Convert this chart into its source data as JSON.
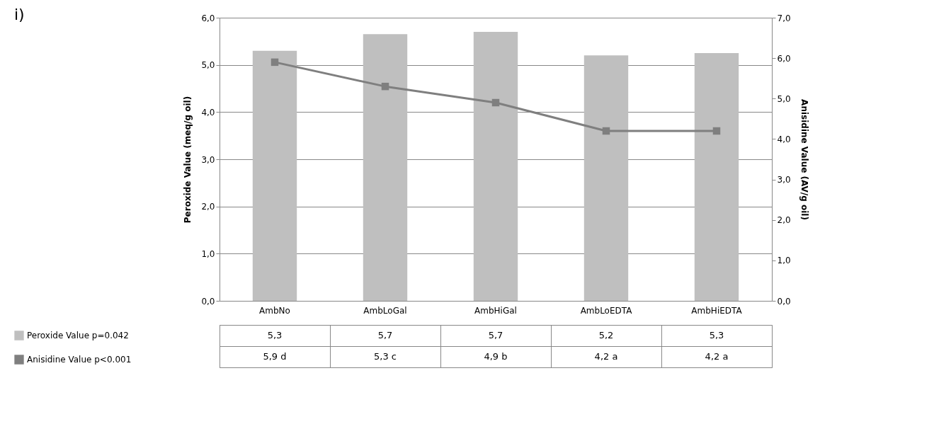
{
  "chart_data": {
    "type": "bar",
    "annotations": [
      "i)"
    ],
    "ylabel": "Peroxide Value (meq/g oil)",
    "y2label": "Anisidine Value (AV/g oil)",
    "categories": [
      "AmbNo",
      "AmbLoGal",
      "AmbHiGal",
      "AmbLoEDTA",
      "AmbHiEDTA"
    ],
    "series": [
      {
        "name": "Peroxide Value p=0.042",
        "color": "#bfbfbf",
        "values": [
          5.3,
          5.65,
          5.7,
          5.2,
          5.25
        ],
        "value_labels": [
          "5,3",
          "5,7",
          "5,7",
          "5,2",
          "5,3"
        ]
      },
      {
        "name": "Anisidine Value p<0.001",
        "type": "line",
        "axis": "y2",
        "marker": "square",
        "color": "#7f7f7f",
        "values": [
          5.9,
          5.3,
          4.9,
          4.2,
          4.2
        ],
        "value_labels": [
          "5,9 d",
          "5,3 c",
          "4,9 b",
          "4,2 a",
          "4,2 a"
        ]
      }
    ],
    "ylim": [
      0,
      6
    ],
    "yticks": [
      {
        "value": 0,
        "label": "0,0"
      },
      {
        "value": 1,
        "label": "1,0"
      },
      {
        "value": 2,
        "label": "2,0"
      },
      {
        "value": 3,
        "label": "3,0"
      },
      {
        "value": 4,
        "label": "4,0"
      },
      {
        "value": 5,
        "label": "5,0"
      },
      {
        "value": 6,
        "label": "6,0"
      }
    ],
    "y2lim": [
      0,
      7
    ],
    "y2ticks": [
      {
        "value": 0,
        "label": "0,0"
      },
      {
        "value": 1,
        "label": "1,0"
      },
      {
        "value": 2,
        "label": "2,0"
      },
      {
        "value": 3,
        "label": "3,0"
      },
      {
        "value": 4,
        "label": "4,0"
      },
      {
        "value": 5,
        "label": "5,0"
      },
      {
        "value": 6,
        "label": "6,0"
      },
      {
        "value": 7,
        "label": "7,0"
      }
    ],
    "grid": "y",
    "legend": "bottom left"
  }
}
